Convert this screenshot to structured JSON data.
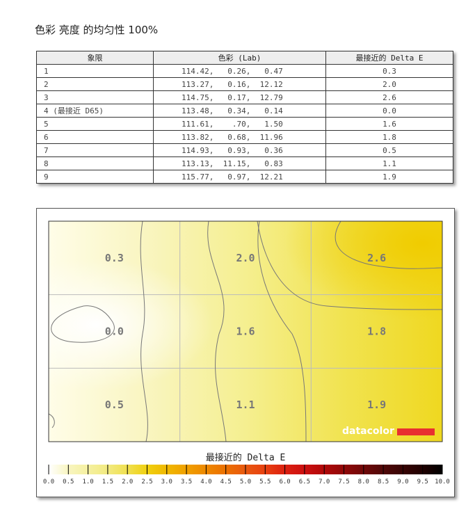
{
  "title": "色彩 亮度 的均匀性 100%",
  "table": {
    "headers": [
      "象限",
      "色彩 (Lab)",
      "最接近的 Delta E"
    ],
    "rows": [
      [
        "1",
        "114.42,   0.26,   0.47",
        "0.3"
      ],
      [
        "2",
        "113.27,   0.16,  12.12",
        "2.0"
      ],
      [
        "3",
        "114.75,   0.17,  12.79",
        "2.6"
      ],
      [
        "4 (最接近 D65)",
        "113.48,   0.34,   0.14",
        "0.0"
      ],
      [
        "5",
        "111.61,    .70,   1.50",
        "1.6"
      ],
      [
        "6",
        "113.82,   0.68,  11.96",
        "1.8"
      ],
      [
        "7",
        "114.93,   0.93,   0.36",
        "0.5"
      ],
      [
        "8",
        "113.13,  11.15,   0.83",
        "1.1"
      ],
      [
        "9",
        "115.77,   0.97,  12.21",
        "1.9"
      ]
    ]
  },
  "chart_data": {
    "type": "heatmap",
    "grid": "3x3",
    "cells": [
      [
        0.3,
        2.0,
        2.6
      ],
      [
        0.0,
        1.6,
        1.8
      ],
      [
        0.5,
        1.1,
        1.9
      ]
    ],
    "colorbar_label": "最接近的 Delta E",
    "colorbar_ticks": [
      "0.0",
      "0.5",
      "1.0",
      "1.5",
      "2.0",
      "2.5",
      "3.0",
      "3.5",
      "4.0",
      "4.5",
      "5.0",
      "5.5",
      "6.0",
      "6.5",
      "7.0",
      "7.5",
      "8.0",
      "8.5",
      "9.0",
      "9.5",
      "10.0"
    ],
    "colorbar_range": [
      0,
      10
    ],
    "colors": [
      "#ffffff",
      "#f8f5c0",
      "#f5f0a0",
      "#f2ea80",
      "#f0e050",
      "#f0d010",
      "#f0b800",
      "#f0a000",
      "#ee8800",
      "#ec7000",
      "#e85810",
      "#e84010",
      "#dc2010",
      "#cc1010",
      "#b00808",
      "#900808",
      "#700808",
      "#500808",
      "#380404",
      "#200000",
      "#000000"
    ],
    "logo": "datacolor"
  }
}
